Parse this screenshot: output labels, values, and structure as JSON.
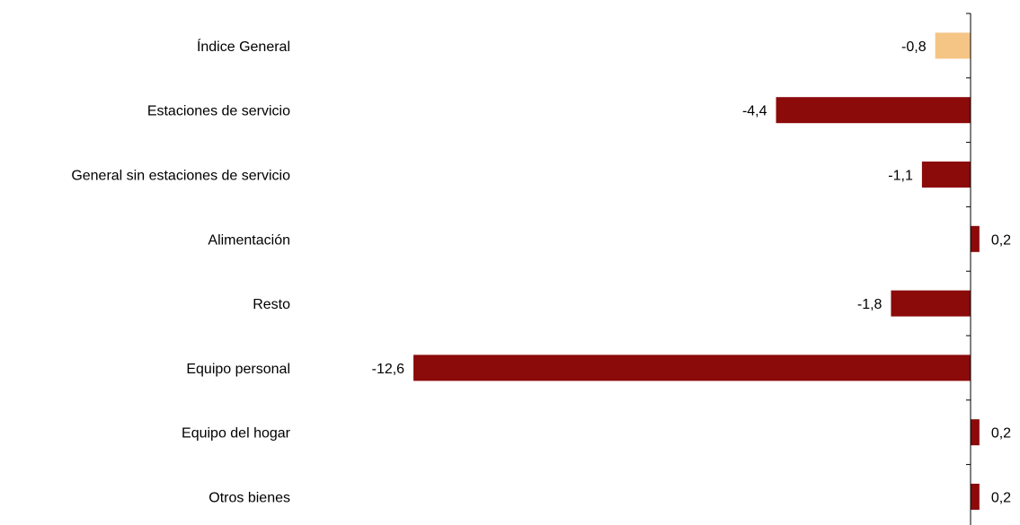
{
  "chart_data": {
    "type": "bar",
    "orientation": "horizontal",
    "title": "",
    "xlabel": "",
    "ylabel": "",
    "xlim": [
      -13.3,
      1.1
    ],
    "grid": false,
    "legend": "none",
    "categories": [
      "Índice General",
      "Estaciones de servicio",
      "General sin estaciones de servicio",
      "Alimentación",
      "Resto",
      "Equipo personal",
      "Equipo del hogar",
      "Otros bienes"
    ],
    "values": [
      -0.8,
      -4.4,
      -1.1,
      0.2,
      -1.8,
      -12.6,
      0.2,
      0.2
    ],
    "value_labels": [
      "-0,8",
      "-4,4",
      "-1,1",
      "0,2",
      "-1,8",
      "-12,6",
      "0,2",
      "0,2"
    ],
    "colors": [
      "#F5C585",
      "#8B0A0A",
      "#8B0A0A",
      "#8B0A0A",
      "#8B0A0A",
      "#8B0A0A",
      "#8B0A0A",
      "#8B0A0A"
    ]
  }
}
